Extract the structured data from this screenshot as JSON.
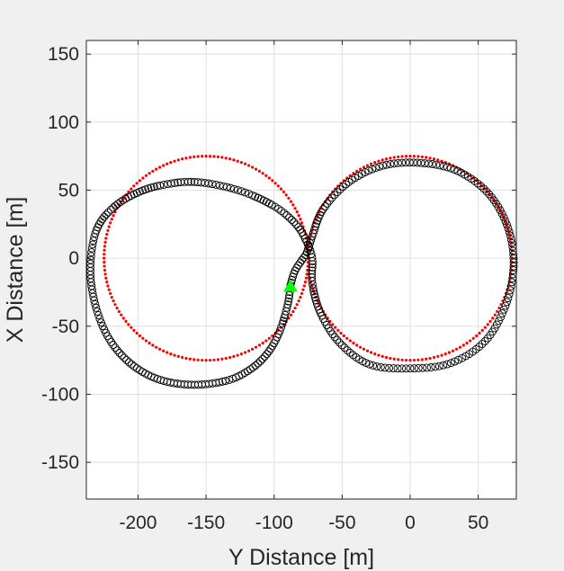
{
  "chart_data": {
    "type": "scatter",
    "title": "",
    "xlabel": "Y Distance [m]",
    "ylabel": "X Distance [m]",
    "xlim": [
      -238,
      78
    ],
    "ylim": [
      -177,
      160
    ],
    "xticks": [
      -200,
      -150,
      -100,
      -50,
      0,
      50
    ],
    "yticks": [
      -150,
      -100,
      -50,
      0,
      50,
      100,
      150
    ],
    "xtick_labels": [
      "-200",
      "-150",
      "-100",
      "-50",
      "0",
      "50"
    ],
    "ytick_labels": [
      "-150",
      "-100",
      "-50",
      "0",
      "50",
      "100",
      "150"
    ],
    "grid": true,
    "legend": "none",
    "series": [
      {
        "marker": "dot",
        "color": "#ff0000",
        "figure_eight": {
          "left_circle": {
            "cx": -150,
            "cy": 0,
            "r": 75
          },
          "right_circle": {
            "cx": 0,
            "cy": 0,
            "r": 75
          },
          "points_per_circle": 160
        }
      },
      {
        "marker": "open-circle",
        "color": "#000000",
        "path_waypoints": [
          [
            -88,
            -20
          ],
          [
            -90,
            -34
          ],
          [
            -96,
            -54
          ],
          [
            -105,
            -70
          ],
          [
            -118,
            -82
          ],
          [
            -135,
            -90
          ],
          [
            -160,
            -93
          ],
          [
            -185,
            -89
          ],
          [
            -206,
            -77
          ],
          [
            -222,
            -58
          ],
          [
            -232,
            -32
          ],
          [
            -235,
            -5
          ],
          [
            -230,
            22
          ],
          [
            -216,
            39
          ],
          [
            -196,
            50
          ],
          [
            -175,
            55
          ],
          [
            -158,
            56
          ],
          [
            -138,
            53
          ],
          [
            -118,
            47
          ],
          [
            -98,
            37
          ],
          [
            -84,
            25
          ],
          [
            -77,
            14
          ],
          [
            -72,
            0
          ],
          [
            -72,
            -18
          ],
          [
            -66,
            -40
          ],
          [
            -52,
            -62
          ],
          [
            -30,
            -78
          ],
          [
            0,
            -81
          ],
          [
            30,
            -77
          ],
          [
            55,
            -61
          ],
          [
            70,
            -35
          ],
          [
            76,
            -6
          ],
          [
            72,
            22
          ],
          [
            58,
            47
          ],
          [
            35,
            64
          ],
          [
            8,
            70
          ],
          [
            -20,
            68
          ],
          [
            -45,
            56
          ],
          [
            -64,
            36
          ],
          [
            -72,
            16
          ],
          [
            -76,
            4
          ],
          [
            -80,
            -2
          ],
          [
            -85,
            -10
          ],
          [
            -88,
            -20
          ]
        ],
        "marker_radius": 4
      },
      {
        "marker": "triangle",
        "color": "#00ff00",
        "points": [
          {
            "x": -88,
            "y": -21
          }
        ]
      }
    ]
  }
}
